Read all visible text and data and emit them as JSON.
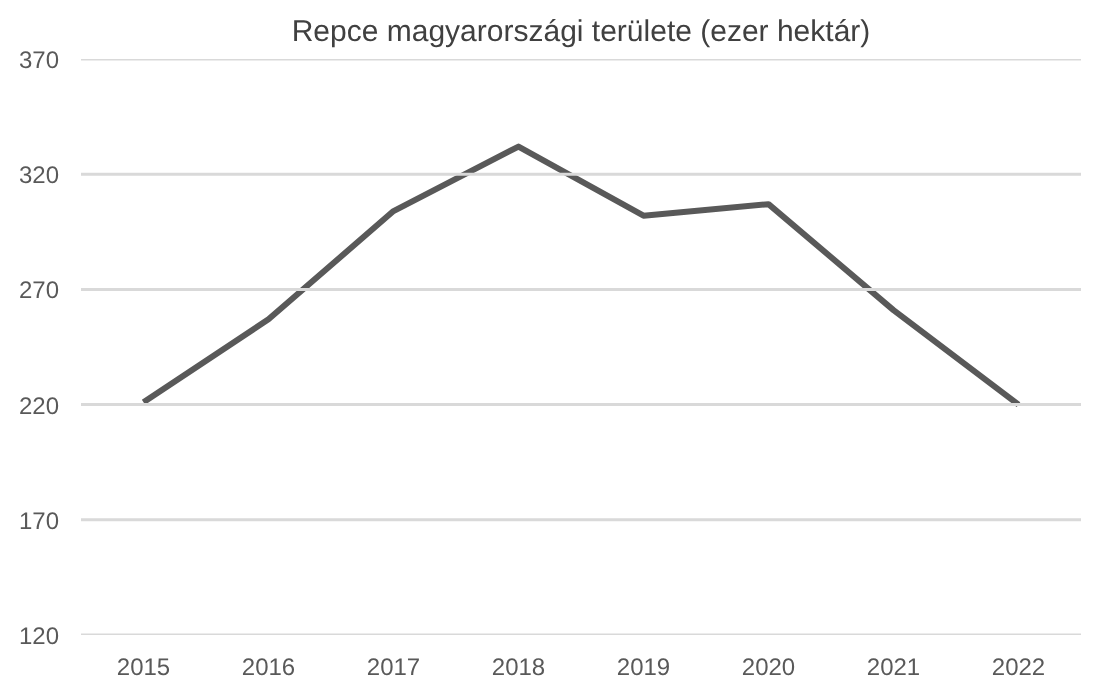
{
  "chart_data": {
    "type": "line",
    "title": "Repce magyarországi területe (ezer hektár)",
    "categories": [
      "2015",
      "2016",
      "2017",
      "2018",
      "2019",
      "2020",
      "2021",
      "2022"
    ],
    "series": [
      {
        "color": "#595959",
        "values": [
          221,
          257,
          304,
          332,
          302,
          307,
          261,
          220
        ]
      }
    ],
    "ylim": [
      120,
      370
    ],
    "yticks": [
      120,
      170,
      220,
      270,
      320,
      370
    ],
    "grid": "y",
    "marker": "none",
    "line_style": "solid"
  }
}
